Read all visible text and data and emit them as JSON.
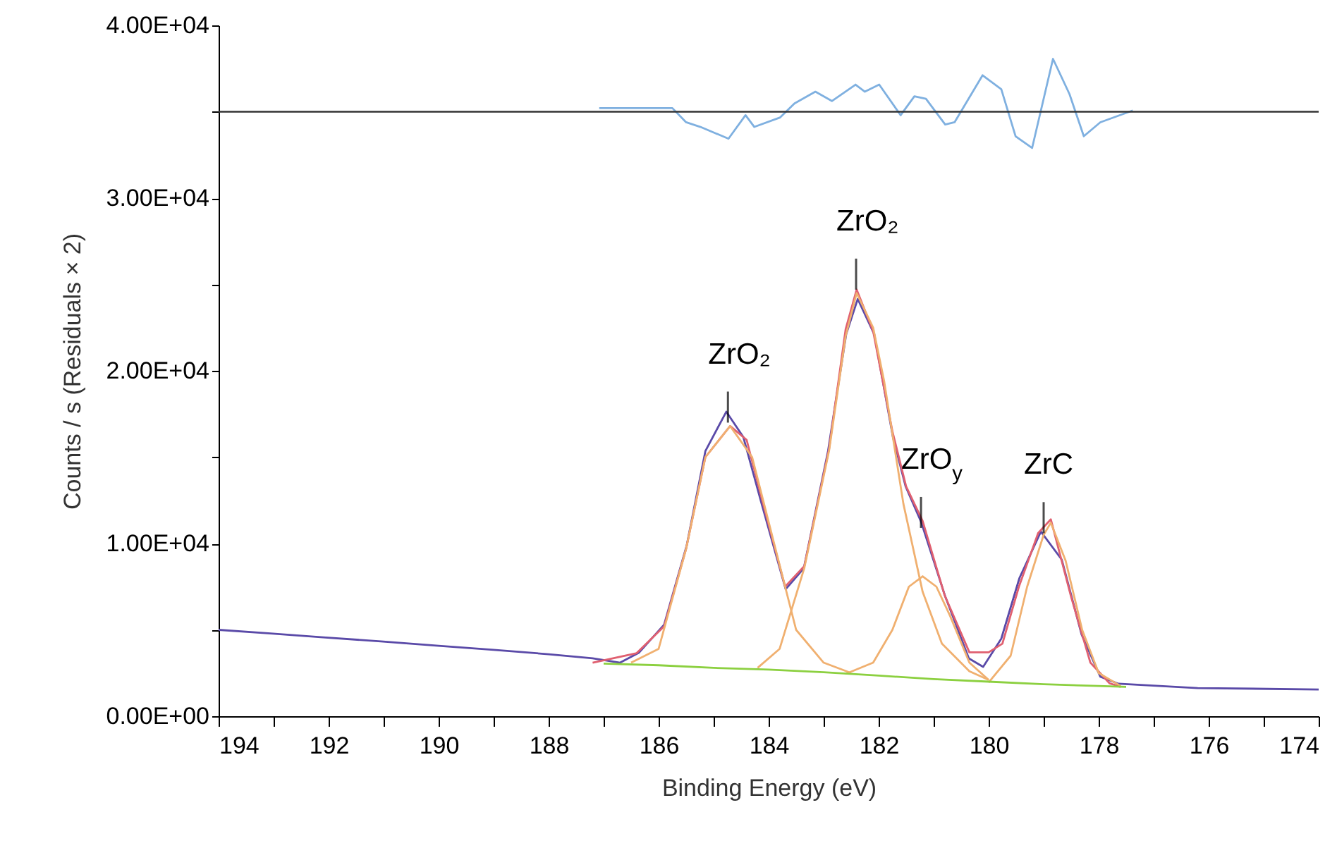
{
  "chart_data": {
    "type": "line",
    "xlabel": "Binding Energy (eV)",
    "ylabel": "Counts / s  (Residuals × 2)",
    "xlim": [
      194,
      174
    ],
    "xticks": [
      194,
      {
        "value": 193,
        "label": null
      },
      192,
      {
        "value": 191,
        "label": null
      },
      190,
      {
        "value": 189,
        "label": null
      },
      188,
      {
        "value": 187,
        "label": null
      },
      186,
      {
        "value": 185,
        "label": null
      },
      184,
      {
        "value": 183,
        "label": null
      },
      182,
      {
        "value": 181,
        "label": null
      },
      180,
      {
        "value": 179,
        "label": null
      },
      178,
      {
        "value": 177,
        "label": null
      },
      176,
      {
        "value": 175,
        "label": null
      },
      174
    ],
    "ylim": [
      0,
      40000
    ],
    "yticks": [
      {
        "value": 0,
        "label": "0.00E+00"
      },
      {
        "value": 5000,
        "label": null
      },
      {
        "value": 10000,
        "label": "1.00E+04"
      },
      {
        "value": 15000,
        "label": null
      },
      {
        "value": 20000,
        "label": "2.00E+04"
      },
      {
        "value": 25000,
        "label": null
      },
      {
        "value": 30000,
        "label": "3.00E+04"
      },
      {
        "value": 35000,
        "label": null
      },
      {
        "value": 40000,
        "label": "4.00E+04"
      }
    ],
    "series": [
      {
        "color": "#5a4aa8",
        "x": [
          194,
          193.1,
          192.1,
          191.05,
          190,
          189,
          188,
          187.2,
          186.7,
          186.36,
          185.9,
          185.49,
          185.15,
          184.77,
          184.46,
          184.13,
          183.69,
          183.36,
          182.92,
          182.59,
          182.38,
          182.08,
          181.74,
          181.51,
          181.23,
          180.79,
          180.36,
          180.1,
          179.77,
          179.44,
          179.05,
          178.67,
          178.31,
          177.97,
          177.64,
          176.2,
          174
        ],
        "values": [
          5000,
          4800,
          4570,
          4330,
          4080,
          3840,
          3590,
          3350,
          3100,
          3670,
          5300,
          9880,
          15350,
          17630,
          16160,
          12330,
          7350,
          8570,
          15350,
          22120,
          24160,
          22120,
          16160,
          13310,
          11270,
          6940,
          3350,
          2860,
          4490,
          8000,
          10690,
          9060,
          4730,
          2290,
          1880,
          1630,
          1550
        ]
      },
      {
        "color": "#e06070",
        "x": [
          187.2,
          186.4,
          185.9,
          185.5,
          185.15,
          184.7,
          184.4,
          184.1,
          183.7,
          183.35,
          182.9,
          182.6,
          182.4,
          182.1,
          181.75,
          181.5,
          181.2,
          180.8,
          180.35,
          180,
          179.75,
          179.45,
          179.1,
          178.87,
          178.5,
          178.15,
          177.8,
          177.6
        ],
        "values": [
          3100,
          3650,
          5200,
          9700,
          15000,
          16800,
          16000,
          12300,
          7500,
          8700,
          15500,
          22400,
          24700,
          22300,
          16500,
          13300,
          11300,
          7000,
          3700,
          3700,
          4200,
          7500,
          10600,
          11400,
          6900,
          3100,
          1900,
          1700
        ]
      },
      {
        "color": "#f0b070",
        "x": [
          186.5,
          186,
          185.5,
          185.15,
          184.7,
          184.3,
          183.9,
          183.5,
          183,
          182.5
        ],
        "values": [
          3100,
          3900,
          9700,
          15000,
          16800,
          15000,
          10000,
          5000,
          3100,
          2500
        ]
      },
      {
        "color": "#f0b070",
        "x": [
          184.2,
          183.8,
          183.35,
          182.9,
          182.6,
          182.4,
          182.1,
          181.9,
          181.55,
          181.2,
          180.85,
          180.35,
          180
        ],
        "values": [
          2800,
          3900,
          8600,
          15400,
          22000,
          24500,
          22500,
          19400,
          12300,
          7200,
          4200,
          2600,
          2100
        ]
      },
      {
        "color": "#f0b070",
        "x": [
          182.6,
          182.1,
          181.75,
          181.45,
          181.2,
          180.95,
          180.7,
          180.35,
          180
        ],
        "values": [
          2450,
          3100,
          5000,
          7500,
          8100,
          7500,
          5800,
          3100,
          2100
        ]
      },
      {
        "color": "#f0b070",
        "x": [
          180,
          179.6,
          179.3,
          179,
          178.87,
          178.6,
          178.3,
          178,
          177.6
        ],
        "values": [
          1950,
          3500,
          7500,
          10500,
          11200,
          9000,
          5000,
          2500,
          1750
        ]
      },
      {
        "color": "#8cd040",
        "x": [
          187,
          186,
          185,
          184,
          183,
          182,
          181,
          180,
          179,
          178,
          177.5
        ],
        "values": [
          3050,
          2950,
          2800,
          2700,
          2550,
          2350,
          2150,
          2000,
          1850,
          1750,
          1700
        ]
      },
      {
        "color": "#7fb0e0",
        "x": [
          187.08,
          185.75,
          185.5,
          185.24,
          184.73,
          184.42,
          184.26,
          183.79,
          183.53,
          183.15,
          182.85,
          182.42,
          182.25,
          181.99,
          181.6,
          181.35,
          181.14,
          180.79,
          180.62,
          180.11,
          179.77,
          179.51,
          179.21,
          178.83,
          178.53,
          178.27,
          177.97,
          177.38
        ],
        "values": [
          35210,
          35210,
          34390,
          34120,
          33440,
          34800,
          34120,
          34670,
          35480,
          36160,
          35620,
          36570,
          36160,
          36570,
          34800,
          35890,
          35750,
          34260,
          34390,
          37110,
          36300,
          33580,
          32900,
          38060,
          36020,
          33580,
          34390,
          35070
        ]
      }
    ],
    "ref_lines": [
      {
        "axis": "y",
        "value": 35000,
        "color": "#333333"
      }
    ],
    "annotations": [
      {
        "text": "ZrO₂",
        "x": 184.74,
        "y": 17000
      },
      {
        "text": "ZrO₂",
        "x": 182.41,
        "y": 24700
      },
      {
        "text": "ZrO$_{y}$",
        "x": 181.23,
        "y": 10900
      },
      {
        "text": "ZrC",
        "x": 179.0,
        "y": 10600
      }
    ]
  }
}
